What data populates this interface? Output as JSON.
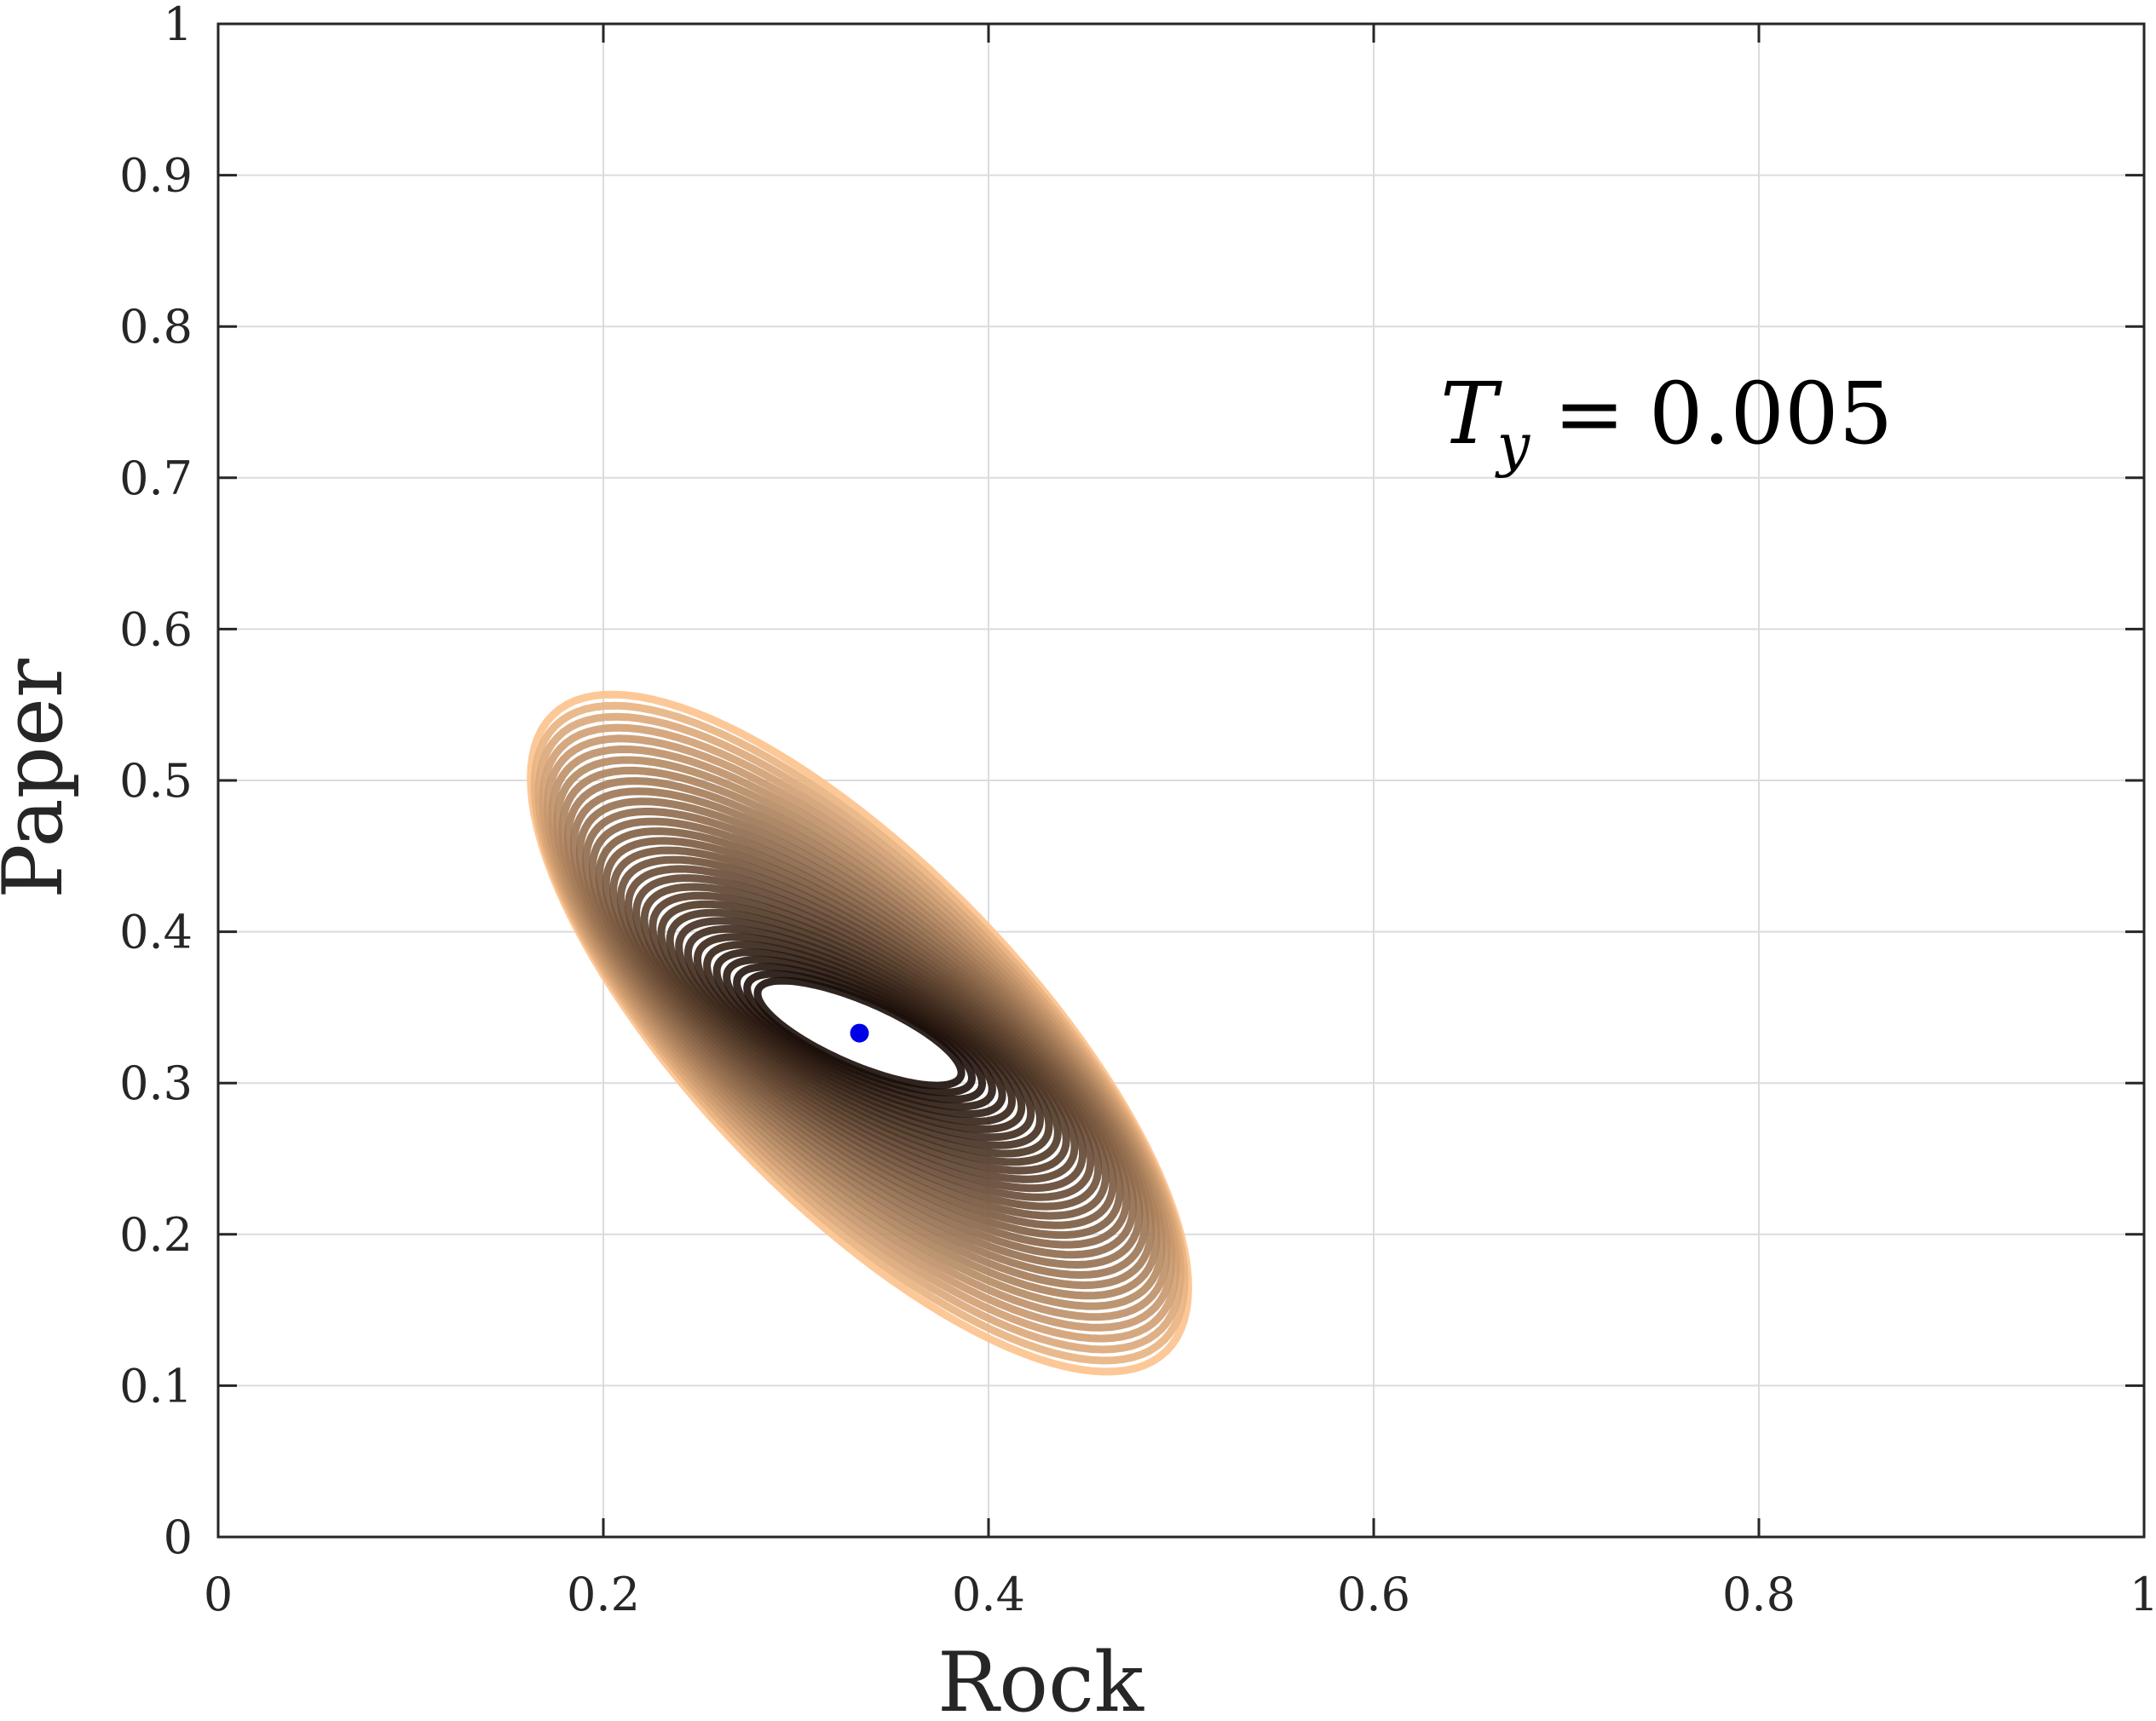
{
  "chart_data": {
    "type": "line",
    "xlabel": "Rock",
    "ylabel": "Paper",
    "xlim": [
      0,
      1
    ],
    "ylim": [
      0,
      1
    ],
    "x_ticks": [
      "0",
      "0.2",
      "0.4",
      "0.6",
      "0.8",
      "1"
    ],
    "y_ticks": [
      "0",
      "0.1",
      "0.2",
      "0.3",
      "0.4",
      "0.5",
      "0.6",
      "0.7",
      "0.8",
      "0.9",
      "1"
    ],
    "grid": true,
    "annotation": {
      "symbol": "T",
      "subscript": "y",
      "equals": "=",
      "value": "0.005",
      "placement": "upper-right"
    },
    "trajectory": {
      "description_free": true,
      "center": [
        0.333,
        0.333
      ],
      "loops": 32,
      "outer_semi_major": 0.265,
      "outer_semi_minor": 0.095,
      "inner_semi_major": 0.06,
      "inner_semi_minor": 0.02,
      "start_angle_deg": -55,
      "end_angle_deg": -30,
      "color_start": "#fdc28c",
      "color_end": "#1a0d08"
    },
    "equilibrium_point": {
      "x": 0.333,
      "y": 0.333,
      "color": "#0000e6"
    }
  },
  "colors": {
    "axis": "#262626",
    "grid": "#dcdcdc",
    "background": "#ffffff"
  }
}
